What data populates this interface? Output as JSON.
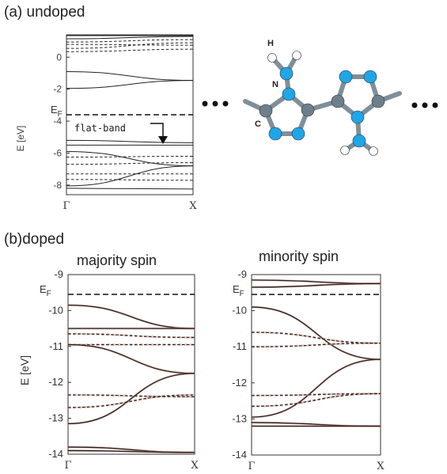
{
  "colors": {
    "band": "#222222",
    "fermi": "#111111",
    "band_shadow": "#d98c7a",
    "atom_blue": "#1ea6e8",
    "atom_gray": "#6e7f8c",
    "atom_white": "#ffffff",
    "bond": "#7f8f9a"
  },
  "labels": {
    "panel_a": "(a) undoped",
    "panel_b": "(b)doped",
    "majority_title": "majority spin",
    "minority_title": "minority spin",
    "annotation": "flat-band",
    "atom_H": "H",
    "atom_N": "N",
    "atom_C": "C",
    "ellipsis": "●●●"
  },
  "chart_data": [
    {
      "id": "undoped",
      "type": "line",
      "title": "(a) undoped",
      "xlabel": "",
      "ylabel": "E [eV]",
      "ylim": [
        -8.6,
        1.4
      ],
      "yticks": [
        0,
        -2,
        -4,
        -6,
        -8
      ],
      "ytick_labels": [
        "0",
        "-2",
        "-4",
        "-6",
        "-8"
      ],
      "xticks": [
        "Γ",
        "X"
      ],
      "grid": false,
      "fermi_level": {
        "label": "EF",
        "label_main": "E",
        "label_sub": "F",
        "value": -3.6
      },
      "annotations": [
        {
          "text": "flat-band",
          "value": -5.5
        }
      ],
      "series": [
        {
          "style": "solid",
          "values": [
            1.35,
            1.35
          ]
        },
        {
          "style": "solid",
          "values": [
            1.15,
            1.3
          ]
        },
        {
          "style": "dashed",
          "values": [
            0.95,
            1.1
          ]
        },
        {
          "style": "dashed",
          "values": [
            0.8,
            0.75
          ]
        },
        {
          "style": "dashed",
          "values": [
            0.55,
            0.9
          ]
        },
        {
          "style": "dashed",
          "values": [
            0.35,
            0.5
          ]
        },
        {
          "style": "solid",
          "values": [
            -0.9,
            -1.45
          ]
        },
        {
          "style": "solid",
          "values": [
            -1.95,
            -1.45
          ]
        },
        {
          "style": "solid",
          "values": [
            -5.2,
            -5.35
          ]
        },
        {
          "style": "solid",
          "values": [
            -5.5,
            -5.5
          ]
        },
        {
          "style": "solid",
          "values": [
            -5.9,
            -6.8
          ]
        },
        {
          "style": "solid",
          "values": [
            -8.05,
            -6.8
          ]
        },
        {
          "style": "dashed",
          "values": [
            -6.25,
            -6.2
          ]
        },
        {
          "style": "dashed",
          "values": [
            -6.7,
            -6.6
          ]
        },
        {
          "style": "dashed",
          "values": [
            -7.3,
            -7.3
          ]
        },
        {
          "style": "dashed",
          "values": [
            -7.65,
            -7.7
          ]
        },
        {
          "style": "solid",
          "values": [
            -8.2,
            -8.25
          ]
        }
      ]
    },
    {
      "id": "majority",
      "type": "line",
      "title": "majority spin",
      "xlabel": "",
      "ylabel": "E [eV]",
      "ylim": [
        -14,
        -9
      ],
      "yticks": [
        -9,
        -10,
        -11,
        -12,
        -13,
        -14
      ],
      "ytick_labels": [
        "-9",
        "-10",
        "-11",
        "-12",
        "-13",
        "-14"
      ],
      "xticks": [
        "Γ",
        "X"
      ],
      "grid": false,
      "fermi_level": {
        "label": "EF",
        "label_main": "E",
        "label_sub": "F",
        "value": -9.55
      },
      "series": [
        {
          "style": "solid",
          "values": [
            -9.85,
            -10.5
          ]
        },
        {
          "style": "solid",
          "values": [
            -10.5,
            -10.5
          ]
        },
        {
          "style": "dashed",
          "values": [
            -10.65,
            -10.75
          ]
        },
        {
          "style": "dashed",
          "values": [
            -10.95,
            -10.95
          ]
        },
        {
          "style": "solid",
          "values": [
            -10.95,
            -11.75
          ]
        },
        {
          "style": "solid",
          "values": [
            -13.15,
            -11.75
          ]
        },
        {
          "style": "dashed",
          "values": [
            -12.35,
            -12.4
          ]
        },
        {
          "style": "dashed",
          "values": [
            -12.7,
            -12.35
          ]
        },
        {
          "style": "solid",
          "values": [
            -13.8,
            -13.95
          ]
        },
        {
          "style": "solid",
          "values": [
            -13.9,
            -13.95
          ]
        }
      ]
    },
    {
      "id": "minority",
      "type": "line",
      "title": "minority spin",
      "xlabel": "",
      "ylabel": "",
      "ylim": [
        -14,
        -9
      ],
      "yticks": [
        -9,
        -10,
        -11,
        -12,
        -13,
        -14
      ],
      "ytick_labels": [
        "-9",
        "-10",
        "-11",
        "-12",
        "-13",
        "-14"
      ],
      "xticks": [
        "Γ",
        "X"
      ],
      "grid": false,
      "fermi_level": {
        "label": "EF",
        "label_main": "E",
        "label_sub": "F",
        "value": -9.55
      },
      "series": [
        {
          "style": "solid",
          "values": [
            -9.15,
            -9.25
          ]
        },
        {
          "style": "solid",
          "values": [
            -9.35,
            -9.25
          ]
        },
        {
          "style": "solid",
          "values": [
            -9.9,
            -11.35
          ]
        },
        {
          "style": "dashed",
          "values": [
            -10.6,
            -10.9
          ]
        },
        {
          "style": "dashed",
          "values": [
            -11.0,
            -10.9
          ]
        },
        {
          "style": "solid",
          "values": [
            -12.95,
            -11.35
          ]
        },
        {
          "style": "dashed",
          "values": [
            -12.35,
            -12.3
          ]
        },
        {
          "style": "dashed",
          "values": [
            -12.65,
            -12.3
          ]
        },
        {
          "style": "solid",
          "values": [
            -13.1,
            -13.2
          ]
        },
        {
          "style": "solid",
          "values": [
            -13.2,
            -13.2
          ]
        }
      ]
    }
  ]
}
